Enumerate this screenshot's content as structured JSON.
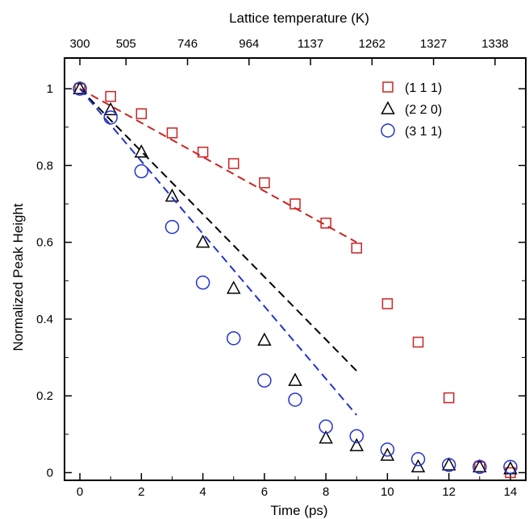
{
  "chart_data": {
    "type": "scatter",
    "xlabel": "Time (ps)",
    "ylabel": "Normalized Peak Height",
    "top_axis_label": "Lattice temperature (K)",
    "xlim": [
      -0.5,
      14.5
    ],
    "ylim": [
      -0.02,
      1.08
    ],
    "x_ticks": [
      0,
      2,
      4,
      6,
      8,
      10,
      12,
      14
    ],
    "y_ticks": [
      0,
      0.2,
      0.4,
      0.6,
      0.8,
      1
    ],
    "top_axis_ticks": [
      {
        "t": 0,
        "label": "300"
      },
      {
        "t": 1.5,
        "label": "505"
      },
      {
        "t": 3.5,
        "label": "746"
      },
      {
        "t": 5.5,
        "label": "964"
      },
      {
        "t": 7.5,
        "label": "1137"
      },
      {
        "t": 9.5,
        "label": "1262"
      },
      {
        "t": 11.5,
        "label": "1327"
      },
      {
        "t": 13.5,
        "label": "1338"
      }
    ],
    "grid": false,
    "legend_position": "top-right",
    "series": [
      {
        "name": "(1 1 1)",
        "marker": "square",
        "color": "#cc2222",
        "x": [
          0,
          1,
          2,
          3,
          4,
          5,
          6,
          7,
          8,
          9,
          10,
          11,
          12,
          13,
          14
        ],
        "y": [
          1.0,
          0.98,
          0.935,
          0.885,
          0.835,
          0.805,
          0.755,
          0.7,
          0.65,
          0.585,
          0.44,
          0.34,
          0.195,
          0.015,
          0.0
        ],
        "fit": {
          "x0": 0,
          "y0": 1.0,
          "x1": 9,
          "y1": 0.6
        }
      },
      {
        "name": "(2 2 0)",
        "marker": "triangle",
        "color": "#000000",
        "x": [
          0,
          1,
          2,
          3,
          4,
          5,
          6,
          7,
          8,
          9,
          10,
          11,
          12,
          13,
          14
        ],
        "y": [
          1.0,
          0.945,
          0.835,
          0.72,
          0.6,
          0.48,
          0.345,
          0.24,
          0.09,
          0.07,
          0.045,
          0.015,
          0.02,
          0.015,
          0.01
        ],
        "fit": {
          "x0": 0,
          "y0": 1.0,
          "x1": 9,
          "y1": 0.265
        }
      },
      {
        "name": "(3 1 1)",
        "marker": "circle",
        "color": "#2233cc",
        "x": [
          0,
          1,
          2,
          3,
          4,
          5,
          6,
          7,
          8,
          9,
          10,
          11,
          12,
          13,
          14
        ],
        "y": [
          1.0,
          0.925,
          0.785,
          0.64,
          0.495,
          0.35,
          0.24,
          0.19,
          0.12,
          0.095,
          0.06,
          0.035,
          0.02,
          0.015,
          0.015
        ],
        "fit": {
          "x0": 0,
          "y0": 1.0,
          "x1": 9,
          "y1": 0.15
        }
      }
    ]
  }
}
